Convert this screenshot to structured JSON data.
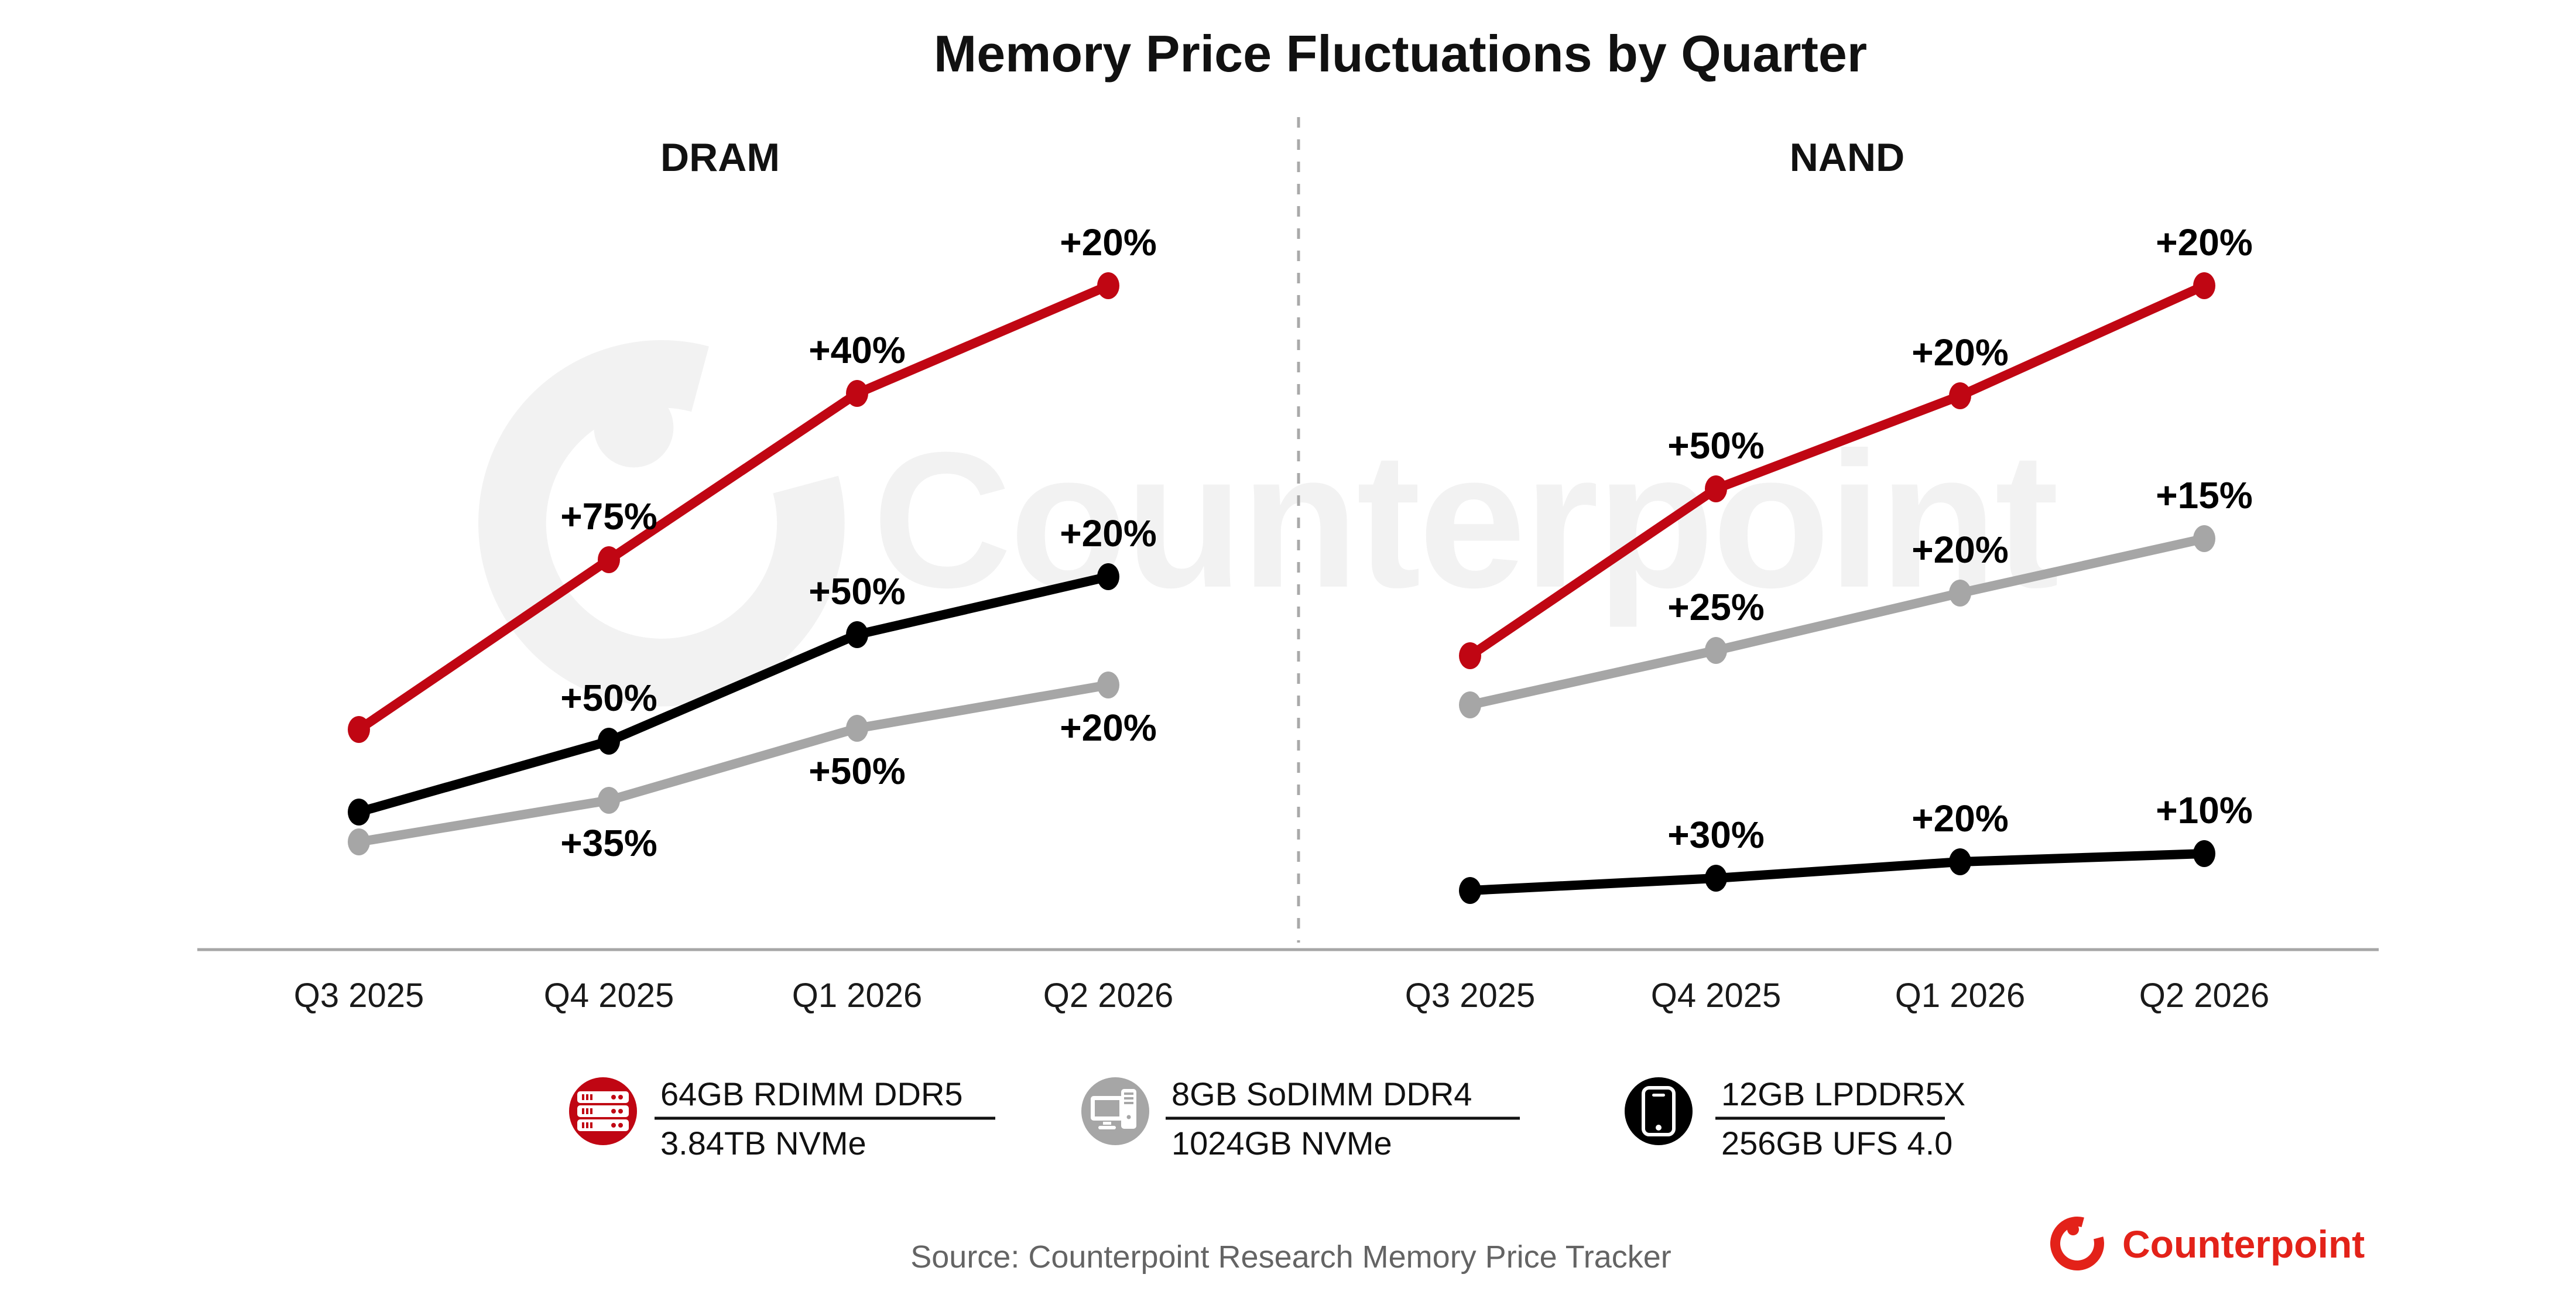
{
  "title": "Memory Price Fluctuations by Quarter",
  "watermark_text": "Counterpoint",
  "chart_data": [
    {
      "type": "line",
      "panel": "DRAM",
      "x_categories": [
        "Q3 2025",
        "Q4 2025",
        "Q1 2026",
        "Q2 2026"
      ],
      "legend_position": "bottom",
      "grid": "off",
      "series": [
        {
          "name": "64GB RDIMM DDR5 / 3.84TB NVMe",
          "color": "#c00613",
          "label_side": "above",
          "qoq_change": [
            null,
            "+75%",
            "+40%",
            "+20%"
          ],
          "points": [
            [
              613,
              1246
            ],
            [
              1040,
              956
            ],
            [
              1464,
              672
            ],
            [
              1893,
              488
            ]
          ]
        },
        {
          "name": "12GB LPDDR5X / 256GB UFS 4.0",
          "color": "#000000",
          "label_side": "above",
          "qoq_change": [
            null,
            "+50%",
            "+50%",
            "+20%"
          ],
          "points": [
            [
              613,
              1387
            ],
            [
              1040,
              1266
            ],
            [
              1464,
              1084
            ],
            [
              1893,
              985
            ]
          ]
        },
        {
          "name": "8GB SoDIMM DDR4 / 1024GB NVMe",
          "color": "#a6a6a6",
          "label_side": "below",
          "qoq_change": [
            null,
            "+35%",
            "+50%",
            "+20%"
          ],
          "points": [
            [
              613,
              1438
            ],
            [
              1040,
              1367
            ],
            [
              1464,
              1244
            ],
            [
              1893,
              1170
            ]
          ]
        }
      ]
    },
    {
      "type": "line",
      "panel": "NAND",
      "x_categories": [
        "Q3 2025",
        "Q4 2025",
        "Q1 2026",
        "Q2 2026"
      ],
      "legend_position": "bottom",
      "grid": "off",
      "series": [
        {
          "name": "64GB RDIMM DDR5 / 3.84TB NVMe",
          "color": "#c00613",
          "label_side": "above",
          "qoq_change": [
            null,
            "+50%",
            "+20%",
            "+20%"
          ],
          "points": [
            [
              2511,
              1120
            ],
            [
              2931,
              835
            ],
            [
              3348,
              676
            ],
            [
              3765,
              488
            ]
          ]
        },
        {
          "name": "8GB SoDIMM DDR4 / 1024GB NVMe",
          "color": "#a6a6a6",
          "label_side": "above",
          "qoq_change": [
            null,
            "+25%",
            "+20%",
            "+15%"
          ],
          "points": [
            [
              2511,
              1204
            ],
            [
              2931,
              1111
            ],
            [
              3348,
              1013
            ],
            [
              3765,
              920
            ]
          ]
        },
        {
          "name": "12GB LPDDR5X / 256GB UFS 4.0",
          "color": "#000000",
          "label_side": "above",
          "qoq_change": [
            null,
            "+30%",
            "+20%",
            "+10%"
          ],
          "points": [
            [
              2511,
              1521
            ],
            [
              2931,
              1500
            ],
            [
              3348,
              1472
            ],
            [
              3765,
              1458
            ]
          ]
        }
      ]
    }
  ],
  "legend": {
    "items": [
      {
        "icon": "server-icon",
        "circle_color": "#c00613",
        "line1": "64GB RDIMM DDR5",
        "line2": "3.84TB NVMe"
      },
      {
        "icon": "desktop-icon",
        "circle_color": "#a6a6a6",
        "line1": "8GB SoDIMM DDR4",
        "line2": "1024GB NVMe"
      },
      {
        "icon": "smartphone-icon",
        "circle_color": "#000000",
        "line1": "12GB LPDDR5X",
        "line2": "256GB UFS 4.0"
      }
    ]
  },
  "source": "Source: Counterpoint Research Memory Price Tracker",
  "brand": {
    "name": "Counterpoint",
    "color": "#e32219"
  },
  "colors": {
    "axis": "#a6a6a6",
    "divider": "#a9a9a9",
    "source_text": "#646464",
    "watermark": "#f2f2f2",
    "label_text": "#000000"
  }
}
